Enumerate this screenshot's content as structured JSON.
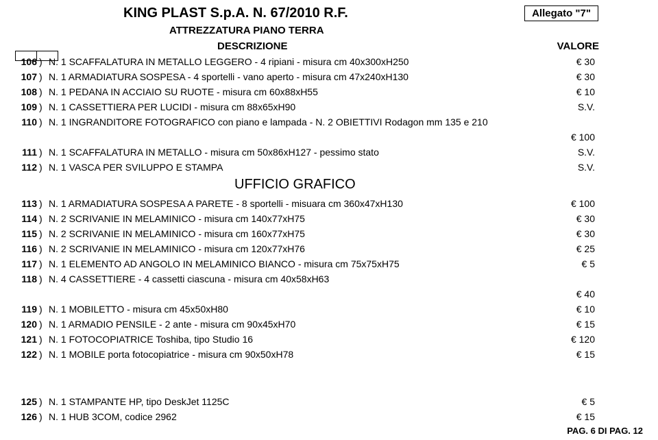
{
  "header": {
    "company": "KING PLAST S.p.A.  N. 67/2010 R.F.",
    "allegato": "Allegato \"7\"",
    "subtitle": "ATTREZZATURA PIANO TERRA",
    "desc_heading": "DESCRIZIONE",
    "valore_heading": "VALORE"
  },
  "rows": [
    {
      "n": "106",
      "d": "N. 1 SCAFFALATURA IN METALLO LEGGERO - 4 ripiani - misura cm 40x300xH250",
      "v": "€ 30"
    },
    {
      "n": "107",
      "d": "N. 1 ARMADIATURA SOSPESA - 4 sportelli - vano aperto - misura cm 47x240xH130",
      "v": "€ 30"
    },
    {
      "n": "108",
      "d": "N. 1 PEDANA IN ACCIAIO SU RUOTE - misura cm 60x88xH55",
      "v": "€ 10"
    },
    {
      "n": "109",
      "d": "N. 1 CASSETTIERA PER LUCIDI - misura cm 88x65xH90",
      "v": "S.V."
    },
    {
      "n": "110",
      "d": "N. 1 INGRANDITORE FOTOGRAFICO con piano e lampada  - N. 2 OBIETTIVI Rodagon mm 135 e 210",
      "v": ""
    },
    {
      "n": "",
      "d": "",
      "v": "€ 100"
    },
    {
      "n": "111",
      "d": "N. 1 SCAFFALATURA IN METALLO - misura cm 50x86xH127 - pessimo stato",
      "v": "S.V."
    },
    {
      "n": "112",
      "d": "N. 1 VASCA PER SVILUPPO E STAMPA",
      "v": "S.V."
    }
  ],
  "section_title": "UFFICIO GRAFICO",
  "rows2": [
    {
      "n": "113",
      "d": "N. 1 ARMADIATURA SOSPESA A PARETE - 8 sportelli - misuara cm 360x47xH130",
      "v": "€ 100"
    },
    {
      "n": "114",
      "d": "N. 2 SCRIVANIE IN MELAMINICO - misura cm 140x77xH75",
      "v": "€ 30"
    },
    {
      "n": "115",
      "d": "N. 2 SCRIVANIE IN MELAMINICO - misura cm 160x77xH75",
      "v": "€ 30"
    },
    {
      "n": "116",
      "d": "N. 2 SCRIVANIE IN MELAMINICO - misura cm 120x77xH76",
      "v": "€ 25"
    },
    {
      "n": "117",
      "d": "N. 1 ELEMENTO AD ANGOLO IN MELAMINICO BIANCO - misura cm 75x75xH75",
      "v": "€ 5"
    },
    {
      "n": "118",
      "d": "N. 4 CASSETTIERE - 4 cassetti ciascuna - misura cm 40x58xH63",
      "v": ""
    },
    {
      "n": "",
      "d": "",
      "v": "€ 40"
    },
    {
      "n": "119",
      "d": "N. 1 MOBILETTO - misura cm 45x50xH80",
      "v": "€ 10"
    },
    {
      "n": "120",
      "d": "N. 1 ARMADIO PENSILE -  2 ante - misura cm 90x45xH70",
      "v": "€ 15"
    },
    {
      "n": "121",
      "d": "N. 1 FOTOCOPIATRICE Toshiba, tipo Studio 16",
      "v": "€ 120"
    },
    {
      "n": "122",
      "d": "N. 1 MOBILE porta fotocopiatrice - misura cm 90x50xH78",
      "v": "€ 15"
    }
  ],
  "rows3": [
    {
      "n": "125",
      "d": "N. 1 STAMPANTE HP, tipo DeskJet 1125C",
      "v": "€ 5"
    },
    {
      "n": "126",
      "d": "N. 1 HUB 3COM, codice 2962",
      "v": "€ 15"
    }
  ],
  "footer": "PAG. 6 DI PAG.  12"
}
